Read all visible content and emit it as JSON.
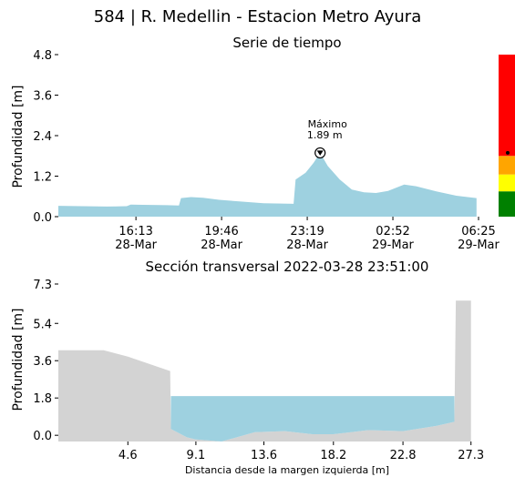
{
  "title": "584 | R. Medellin - Estacion Metro Ayura",
  "chart_data": [
    {
      "type": "area",
      "title": "Serie de tiempo",
      "xlabel": "",
      "ylabel": "Profundidad [m]",
      "ylim": [
        0,
        4.8
      ],
      "y_ticks": [
        "0.0",
        "1.2",
        "2.4",
        "3.6",
        "4.8"
      ],
      "x_ticks": [
        {
          "time": "16:13",
          "date": "28-Mar"
        },
        {
          "time": "19:46",
          "date": "28-Mar"
        },
        {
          "time": "23:19",
          "date": "28-Mar"
        },
        {
          "time": "02:52",
          "date": "29-Mar"
        },
        {
          "time": "06:25",
          "date": "29-Mar"
        }
      ],
      "color": "#9ed1e0",
      "x": [
        "2022-03-28 13:00",
        "2022-03-28 14:00",
        "2022-03-28 15:00",
        "2022-03-28 15:50",
        "2022-03-28 16:00",
        "2022-03-28 16:30",
        "2022-03-28 17:30",
        "2022-03-28 18:00",
        "2022-03-28 18:05",
        "2022-03-28 18:30",
        "2022-03-28 19:00",
        "2022-03-28 19:40",
        "2022-03-28 20:30",
        "2022-03-28 21:30",
        "2022-03-28 22:45",
        "2022-03-28 22:50",
        "2022-03-28 23:15",
        "2022-03-28 23:35",
        "2022-03-28 23:51",
        "2022-03-29 00:10",
        "2022-03-29 00:40",
        "2022-03-29 01:10",
        "2022-03-29 01:40",
        "2022-03-29 02:10",
        "2022-03-29 02:40",
        "2022-03-29 03:20",
        "2022-03-29 03:50",
        "2022-03-29 04:40",
        "2022-03-29 05:30",
        "2022-03-29 06:20"
      ],
      "values": [
        0.32,
        0.31,
        0.3,
        0.31,
        0.36,
        0.35,
        0.34,
        0.33,
        0.55,
        0.58,
        0.56,
        0.5,
        0.45,
        0.4,
        0.38,
        1.1,
        1.3,
        1.6,
        1.89,
        1.5,
        1.1,
        0.8,
        0.72,
        0.7,
        0.76,
        0.95,
        0.9,
        0.75,
        0.62,
        0.55
      ],
      "annotation": {
        "label": "Máximo",
        "value_label": "1.89 m",
        "time": "2022-03-28 23:51",
        "value": 1.89
      },
      "level_bar": {
        "bands": [
          {
            "from": 0.0,
            "to": 0.75,
            "color": "#008000"
          },
          {
            "from": 0.75,
            "to": 1.25,
            "color": "#ffff00"
          },
          {
            "from": 1.25,
            "to": 1.8,
            "color": "#ffa500"
          },
          {
            "from": 1.8,
            "to": 4.8,
            "color": "#ff0000"
          }
        ],
        "marker_value": 1.89
      }
    },
    {
      "type": "area",
      "title": "Sección transversal 2022-03-28 23:51:00",
      "xlabel": "Distancia desde la margen izquierda [m]",
      "ylabel": "Profundidad [m]",
      "xlim": [
        0,
        27.8
      ],
      "ylim": [
        -0.3,
        7.3
      ],
      "x_ticks": [
        "4.6",
        "9.1",
        "13.6",
        "18.2",
        "22.8",
        "27.3"
      ],
      "y_ticks": [
        "0.0",
        "1.8",
        "3.6",
        "5.4",
        "7.3"
      ],
      "water_level": 1.89,
      "water_color": "#9ed1e0",
      "bank_color": "#d3d3d3",
      "profile_x": [
        0.0,
        3.0,
        4.6,
        7.4,
        7.45,
        8.5,
        9.1,
        10.8,
        13.0,
        15.0,
        16.8,
        18.2,
        20.5,
        22.8,
        25.0,
        26.2,
        26.3,
        27.3
      ],
      "profile_y": [
        4.1,
        4.1,
        3.8,
        3.1,
        0.3,
        -0.1,
        -0.2,
        -0.3,
        0.15,
        0.2,
        0.05,
        0.05,
        0.25,
        0.2,
        0.45,
        0.65,
        6.5,
        6.5
      ]
    }
  ]
}
